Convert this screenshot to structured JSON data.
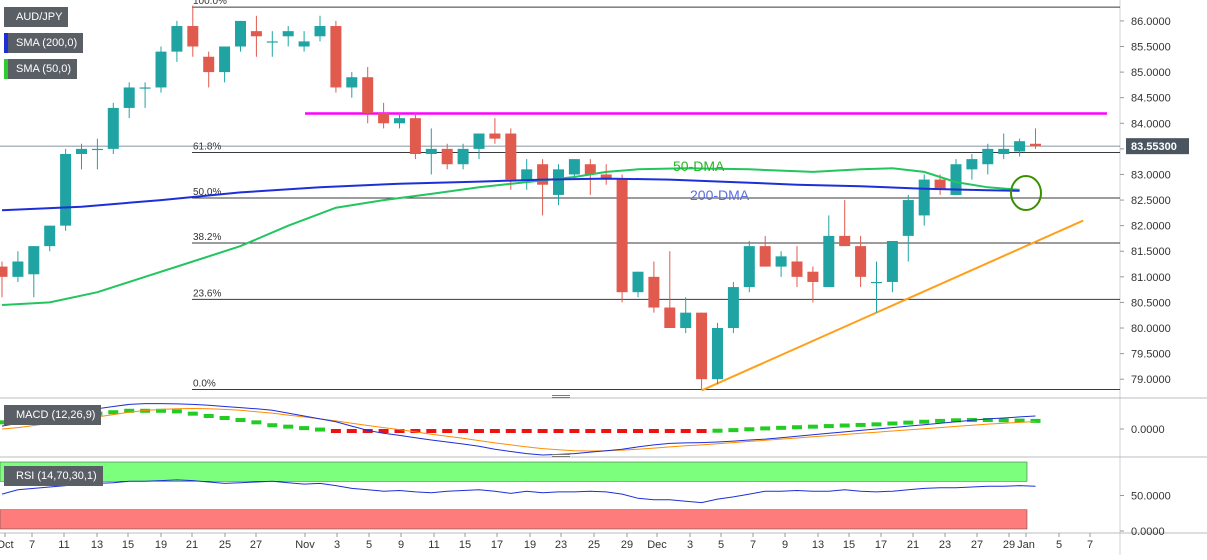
{
  "chart_data": [
    {
      "type": "candlestick",
      "symbol": "AUDJPY",
      "title": "AUD/JPY",
      "indicators": [
        "SMA (200,0)",
        "SMA (50,0)"
      ],
      "last_price_label": "83.55300",
      "y_ticks": [
        "86.0000",
        "85.5000",
        "85.0000",
        "84.5000",
        "84.0000",
        "83.5000",
        "83.0000",
        "82.5000",
        "82.0000",
        "81.5000",
        "81.0000",
        "80.5000",
        "80.0000",
        "79.5000",
        "79.0000"
      ],
      "ylim": [
        78.75,
        86.35
      ],
      "x_ticks": [
        "Oct",
        "7",
        "11",
        "13",
        "15",
        "19",
        "21",
        "25",
        "27",
        "Nov",
        "3",
        "5",
        "9",
        "11",
        "15",
        "17",
        "19",
        "23",
        "25",
        "29",
        "Dec",
        "3",
        "5",
        "7",
        "9",
        "13",
        "15",
        "17",
        "21",
        "23",
        "27",
        "29",
        "Jan",
        "5",
        "7"
      ],
      "candles": [
        [
          81.2,
          81.3,
          80.6,
          81.0
        ],
        [
          81.0,
          81.5,
          80.9,
          81.3
        ],
        [
          81.05,
          81.6,
          80.6,
          81.6
        ],
        [
          81.6,
          82.0,
          81.5,
          82.0
        ],
        [
          82.0,
          83.5,
          81.9,
          83.4
        ],
        [
          83.4,
          83.6,
          83.1,
          83.5
        ],
        [
          83.5,
          83.7,
          83.1,
          83.5
        ],
        [
          83.5,
          84.4,
          83.4,
          84.3
        ],
        [
          84.3,
          84.8,
          84.1,
          84.7
        ],
        [
          84.7,
          84.8,
          84.3,
          84.7
        ],
        [
          84.7,
          85.5,
          84.6,
          85.4
        ],
        [
          85.4,
          86.0,
          85.2,
          85.9
        ],
        [
          85.9,
          86.3,
          85.3,
          85.5
        ],
        [
          85.3,
          85.4,
          84.7,
          85.0
        ],
        [
          85.0,
          85.5,
          84.8,
          85.5
        ],
        [
          85.5,
          86.0,
          85.4,
          86.0
        ],
        [
          85.8,
          86.1,
          85.3,
          85.7
        ],
        [
          85.6,
          85.8,
          85.3,
          85.6
        ],
        [
          85.7,
          85.9,
          85.5,
          85.8
        ],
        [
          85.5,
          85.8,
          85.4,
          85.6
        ],
        [
          85.7,
          86.1,
          85.6,
          85.9
        ],
        [
          85.9,
          86.0,
          84.6,
          84.7
        ],
        [
          84.7,
          85.0,
          84.5,
          84.9
        ],
        [
          84.9,
          85.1,
          84.0,
          84.2
        ],
        [
          84.2,
          84.4,
          83.9,
          84.0
        ],
        [
          84.0,
          84.2,
          83.9,
          84.1
        ],
        [
          84.1,
          84.2,
          83.3,
          83.4
        ],
        [
          83.4,
          83.9,
          83.0,
          83.5
        ],
        [
          83.5,
          83.6,
          83.1,
          83.2
        ],
        [
          83.2,
          83.6,
          83.1,
          83.5
        ],
        [
          83.5,
          83.8,
          83.3,
          83.8
        ],
        [
          83.8,
          84.1,
          83.6,
          83.7
        ],
        [
          83.8,
          83.9,
          82.7,
          82.9
        ],
        [
          82.9,
          83.3,
          82.7,
          83.1
        ],
        [
          83.2,
          83.3,
          82.2,
          82.8
        ],
        [
          82.6,
          83.2,
          82.4,
          83.1
        ],
        [
          83.0,
          83.3,
          82.9,
          83.3
        ],
        [
          83.2,
          83.3,
          82.6,
          83.0
        ],
        [
          83.0,
          83.2,
          82.8,
          82.9
        ],
        [
          82.9,
          83.0,
          80.5,
          80.7
        ],
        [
          80.7,
          81.1,
          80.6,
          81.1
        ],
        [
          81.0,
          81.3,
          80.3,
          80.4
        ],
        [
          80.4,
          81.5,
          80.0,
          80.0
        ],
        [
          80.0,
          80.6,
          79.9,
          80.3
        ],
        [
          80.3,
          80.3,
          78.8,
          79.0
        ],
        [
          79.0,
          80.1,
          78.9,
          80.0
        ],
        [
          80.0,
          80.9,
          79.9,
          80.8
        ],
        [
          80.8,
          81.7,
          80.7,
          81.6
        ],
        [
          81.6,
          81.8,
          81.2,
          81.2
        ],
        [
          81.2,
          81.5,
          81.0,
          81.4
        ],
        [
          81.3,
          81.6,
          80.8,
          81.0
        ],
        [
          81.1,
          81.2,
          80.5,
          80.9
        ],
        [
          80.8,
          82.2,
          80.8,
          81.8
        ],
        [
          81.8,
          82.5,
          81.6,
          81.6
        ],
        [
          81.6,
          81.8,
          80.8,
          81.0
        ],
        [
          80.9,
          81.3,
          80.3,
          80.9
        ],
        [
          80.9,
          81.7,
          80.7,
          81.7
        ],
        [
          81.8,
          82.6,
          81.3,
          82.5
        ],
        [
          82.2,
          83.0,
          82.0,
          82.9
        ],
        [
          82.9,
          83.0,
          82.6,
          82.7
        ],
        [
          82.6,
          83.3,
          82.6,
          83.2
        ],
        [
          83.1,
          83.4,
          82.9,
          83.3
        ],
        [
          83.2,
          83.6,
          83.0,
          83.5
        ],
        [
          83.4,
          83.8,
          83.3,
          83.5
        ],
        [
          83.45,
          83.7,
          83.35,
          83.65
        ],
        [
          83.6,
          83.9,
          83.5,
          83.55
        ]
      ],
      "annotations": {
        "fib_levels": [
          {
            "label": "100.0%",
            "value": 86.27
          },
          {
            "label": "61.8%",
            "value": 83.43
          },
          {
            "label": "50.0%",
            "value": 82.54
          },
          {
            "label": "38.2%",
            "value": 81.66
          },
          {
            "label": "23.6%",
            "value": 80.56
          },
          {
            "label": "0.0%",
            "value": 78.8
          }
        ],
        "resistance_level": 84.19,
        "support_trendline": [
          [
            44,
            78.78
          ],
          [
            68,
            82.1
          ]
        ],
        "labels": {
          "dma50": "50-DMA",
          "dma200": "200-DMA"
        }
      },
      "sma50": [
        [
          0,
          80.45
        ],
        [
          3,
          80.5
        ],
        [
          6,
          80.7
        ],
        [
          9,
          81.0
        ],
        [
          12,
          81.3
        ],
        [
          15,
          81.6
        ],
        [
          18,
          82.0
        ],
        [
          21,
          82.35
        ],
        [
          24,
          82.5
        ],
        [
          27,
          82.62
        ],
        [
          30,
          82.75
        ],
        [
          33,
          82.85
        ],
        [
          36,
          82.95
        ],
        [
          38,
          83.05
        ],
        [
          40,
          83.1
        ],
        [
          43,
          83.12
        ],
        [
          47,
          83.1
        ],
        [
          51,
          83.05
        ],
        [
          54,
          83.1
        ],
        [
          56,
          83.12
        ],
        [
          58,
          83.05
        ],
        [
          60,
          82.85
        ],
        [
          62,
          82.75
        ],
        [
          64,
          82.7
        ]
      ],
      "sma200": [
        [
          0,
          82.3
        ],
        [
          5,
          82.37
        ],
        [
          10,
          82.5
        ],
        [
          15,
          82.65
        ],
        [
          20,
          82.75
        ],
        [
          25,
          82.82
        ],
        [
          30,
          82.86
        ],
        [
          34,
          82.9
        ],
        [
          38,
          82.92
        ],
        [
          42,
          82.9
        ],
        [
          46,
          82.85
        ],
        [
          50,
          82.8
        ],
        [
          54,
          82.77
        ],
        [
          58,
          82.72
        ],
        [
          62,
          82.69
        ],
        [
          64,
          82.68
        ]
      ],
      "colors": {
        "up": "#20a3a3",
        "down": "#e05a4e",
        "sma50": "#22c55e",
        "sma200": "#1f2fd8",
        "resistance": "#ff00ff",
        "trendline": "#ff9f1a",
        "highlight_circle": "#3a8f00"
      }
    },
    {
      "type": "macd",
      "title": "MACD (12,26,9)",
      "y_ticks": [
        "0.0000"
      ],
      "ylim": [
        -0.9,
        0.9
      ],
      "hist_colors": {
        "positive": "#22cc22",
        "negative": "#ee1111"
      },
      "histogram": [
        0.3,
        0.35,
        0.4,
        0.45,
        0.5,
        0.55,
        0.6,
        0.65,
        0.7,
        0.7,
        0.7,
        0.68,
        0.6,
        0.52,
        0.45,
        0.38,
        0.3,
        0.2,
        0.15,
        0.1,
        0.05,
        -0.02,
        -0.1,
        -0.18,
        -0.25,
        -0.32,
        -0.38,
        -0.42,
        -0.45,
        -0.45,
        -0.42,
        -0.38,
        -0.35,
        -0.32,
        -0.3,
        -0.28,
        -0.25,
        -0.22,
        -0.2,
        -0.18,
        -0.16,
        -0.14,
        -0.12,
        -0.08,
        -0.04,
        0.01,
        0.03,
        0.06,
        0.09,
        0.11,
        0.13,
        0.15,
        0.17,
        0.19,
        0.21,
        0.23,
        0.26,
        0.29,
        0.32,
        0.35,
        0.37,
        0.38,
        0.38,
        0.37,
        0.36,
        0.35
      ],
      "macd": [
        0.1,
        0.2,
        0.3,
        0.45,
        0.55,
        0.62,
        0.7,
        0.78,
        0.85,
        0.88,
        0.88,
        0.87,
        0.85,
        0.82,
        0.78,
        0.74,
        0.7,
        0.65,
        0.55,
        0.45,
        0.35,
        0.25,
        0.1,
        -0.05,
        -0.15,
        -0.22,
        -0.3,
        -0.38,
        -0.45,
        -0.52,
        -0.6,
        -0.7,
        -0.78,
        -0.85,
        -0.9,
        -0.88,
        -0.85,
        -0.8,
        -0.75,
        -0.7,
        -0.62,
        -0.55,
        -0.5,
        -0.48,
        -0.47,
        -0.45,
        -0.42,
        -0.38,
        -0.35,
        -0.3,
        -0.25,
        -0.2,
        -0.15,
        -0.1,
        -0.05,
        0.0,
        0.05,
        0.1,
        0.15,
        0.2,
        0.25,
        0.3,
        0.35,
        0.38,
        0.42,
        0.45
      ],
      "signal": [
        0.0,
        0.05,
        0.12,
        0.2,
        0.28,
        0.35,
        0.42,
        0.5,
        0.58,
        0.64,
        0.68,
        0.7,
        0.71,
        0.7,
        0.68,
        0.65,
        0.6,
        0.55,
        0.48,
        0.42,
        0.35,
        0.28,
        0.2,
        0.12,
        0.05,
        -0.02,
        -0.1,
        -0.18,
        -0.25,
        -0.32,
        -0.4,
        -0.48,
        -0.55,
        -0.62,
        -0.68,
        -0.72,
        -0.75,
        -0.76,
        -0.75,
        -0.73,
        -0.7,
        -0.66,
        -0.62,
        -0.58,
        -0.55,
        -0.51,
        -0.47,
        -0.43,
        -0.39,
        -0.35,
        -0.31,
        -0.27,
        -0.23,
        -0.19,
        -0.15,
        -0.11,
        -0.07,
        -0.03,
        0.01,
        0.05,
        0.09,
        0.13,
        0.17,
        0.2,
        0.23,
        0.26
      ],
      "colors": {
        "macd": "#1f2fd8",
        "signal": "#ff8c00"
      }
    },
    {
      "type": "rsi",
      "title": "RSI (14,70,30,1)",
      "y_ticks": [
        "50.0000",
        "0.0000"
      ],
      "ylim": [
        0,
        100
      ],
      "overbought": 70,
      "oversold": 30,
      "values": [
        52,
        58,
        60,
        62,
        64,
        66,
        67,
        68,
        70,
        70,
        71,
        72,
        71,
        69,
        67,
        68,
        69,
        70,
        68,
        66,
        67,
        64,
        60,
        58,
        56,
        57,
        55,
        54,
        56,
        57,
        58,
        56,
        53,
        56,
        54,
        55,
        55,
        56,
        55,
        52,
        46,
        44,
        44,
        42,
        40,
        45,
        48,
        52,
        56,
        56,
        57,
        56,
        56,
        58,
        56,
        55,
        56,
        58,
        60,
        61,
        61,
        62,
        63,
        63,
        64,
        63
      ],
      "colors": {
        "line": "#1f2fd8",
        "ob_zone": "#7cff7c",
        "os_zone": "#ff7c7c"
      }
    }
  ]
}
